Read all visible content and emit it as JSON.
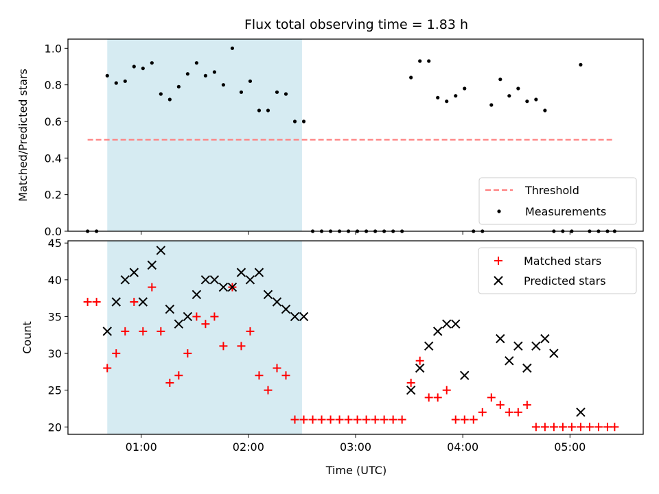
{
  "chart_data": [
    {
      "type": "scatter",
      "title": "Flux total observing time = 1.83 h",
      "ylabel": "Matched/Predicted stars",
      "xlabel": "",
      "ylim": [
        0,
        1.05
      ],
      "y_ticks": [
        "0.0",
        "0.2",
        "0.4",
        "0.6",
        "0.8",
        "1.0"
      ],
      "x_ticks": [
        "01:00",
        "02:00",
        "03:00",
        "04:00",
        "05:00"
      ],
      "highlight_span": {
        "start": "00:41",
        "end": "02:30"
      },
      "threshold": {
        "value": 0.5,
        "start": "00:30",
        "end": "05:25"
      },
      "legend": {
        "placement": "lower-right",
        "entries": [
          "Threshold",
          "Measurements"
        ]
      },
      "series": [
        {
          "name": "Measurements",
          "x": [
            "00:30",
            "00:35",
            "00:41",
            "00:46",
            "00:51",
            "00:56",
            "01:01",
            "01:06",
            "01:11",
            "01:16",
            "01:21",
            "01:26",
            "01:31",
            "01:36",
            "01:41",
            "01:46",
            "01:51",
            "01:56",
            "02:01",
            "02:06",
            "02:11",
            "02:16",
            "02:21",
            "02:26",
            "02:31",
            "02:36",
            "02:41",
            "02:46",
            "02:51",
            "02:56",
            "03:01",
            "03:06",
            "03:11",
            "03:16",
            "03:21",
            "03:26",
            "03:31",
            "03:36",
            "03:41",
            "03:46",
            "03:51",
            "03:56",
            "04:01",
            "04:06",
            "04:11",
            "04:16",
            "04:21",
            "04:26",
            "04:31",
            "04:36",
            "04:41",
            "04:46",
            "04:51",
            "04:56",
            "05:01",
            "05:06",
            "05:11",
            "05:16",
            "05:21",
            "05:25"
          ],
          "y": [
            0,
            0,
            0.85,
            0.81,
            0.82,
            0.9,
            0.89,
            0.92,
            0.75,
            0.72,
            0.79,
            0.86,
            0.92,
            0.85,
            0.87,
            0.8,
            1.0,
            0.76,
            0.82,
            0.66,
            0.66,
            0.76,
            0.75,
            0.6,
            0.6,
            0,
            0,
            0,
            0,
            0,
            0,
            0,
            0,
            0,
            0,
            0,
            0.84,
            0.93,
            0.93,
            0.73,
            0.71,
            0.74,
            0.78,
            0,
            0,
            0.69,
            0.83,
            0.74,
            0.78,
            0.71,
            0.72,
            0.66,
            0,
            0,
            0,
            0.91,
            0,
            0,
            0,
            0
          ]
        }
      ]
    },
    {
      "type": "scatter",
      "title": "",
      "xlabel": "Time (UTC)",
      "ylabel": "Count",
      "ylim": [
        19,
        45.3
      ],
      "y_ticks": [
        "20",
        "25",
        "30",
        "35",
        "40",
        "45"
      ],
      "x_ticks": [
        "01:00",
        "02:00",
        "03:00",
        "04:00",
        "05:00"
      ],
      "highlight_span": {
        "start": "00:41",
        "end": "02:30"
      },
      "legend": {
        "placement": "upper-right",
        "entries": [
          "Matched stars",
          "Predicted stars"
        ]
      },
      "series": [
        {
          "name": "Matched stars",
          "marker": "+",
          "x": [
            "00:30",
            "00:35",
            "00:41",
            "00:46",
            "00:51",
            "00:56",
            "01:01",
            "01:06",
            "01:11",
            "01:16",
            "01:21",
            "01:26",
            "01:31",
            "01:36",
            "01:41",
            "01:46",
            "01:51",
            "01:56",
            "02:01",
            "02:06",
            "02:11",
            "02:16",
            "02:21",
            "02:26",
            "02:31",
            "02:36",
            "02:41",
            "02:46",
            "02:51",
            "02:56",
            "03:01",
            "03:06",
            "03:11",
            "03:16",
            "03:21",
            "03:26",
            "03:31",
            "03:36",
            "03:41",
            "03:46",
            "03:51",
            "03:56",
            "04:01",
            "04:06",
            "04:11",
            "04:16",
            "04:21",
            "04:26",
            "04:31",
            "04:36",
            "04:41",
            "04:46",
            "04:51",
            "04:56",
            "05:01",
            "05:06",
            "05:11",
            "05:16",
            "05:21",
            "05:25"
          ],
          "y": [
            37,
            37,
            28,
            30,
            33,
            37,
            33,
            39,
            33,
            26,
            27,
            30,
            35,
            34,
            35,
            31,
            39,
            31,
            33,
            27,
            25,
            28,
            27,
            21,
            21,
            21,
            21,
            21,
            21,
            21,
            21,
            21,
            21,
            21,
            21,
            21,
            26,
            29,
            24,
            24,
            25,
            21,
            21,
            21,
            22,
            24,
            23,
            22,
            22,
            23,
            20,
            20,
            20,
            20,
            20,
            20,
            20,
            20,
            20,
            20
          ]
        },
        {
          "name": "Predicted stars",
          "marker": "x",
          "x": [
            "00:41",
            "00:46",
            "00:51",
            "00:56",
            "01:01",
            "01:06",
            "01:11",
            "01:16",
            "01:21",
            "01:26",
            "01:31",
            "01:36",
            "01:41",
            "01:46",
            "01:51",
            "01:56",
            "02:01",
            "02:06",
            "02:11",
            "02:16",
            "02:21",
            "02:26",
            "02:31",
            "03:31",
            "03:36",
            "03:41",
            "03:46",
            "03:51",
            "03:56",
            "04:01",
            "04:21",
            "04:26",
            "04:31",
            "04:36",
            "04:41",
            "04:46",
            "04:51",
            "05:06"
          ],
          "y": [
            33,
            37,
            40,
            41,
            37,
            42,
            44,
            36,
            34,
            35,
            38,
            40,
            40,
            39,
            39,
            41,
            40,
            41,
            38,
            37,
            36,
            35,
            35,
            25,
            28,
            31,
            33,
            34,
            34,
            27,
            32,
            29,
            31,
            28,
            31,
            32,
            30,
            22
          ]
        }
      ]
    }
  ]
}
